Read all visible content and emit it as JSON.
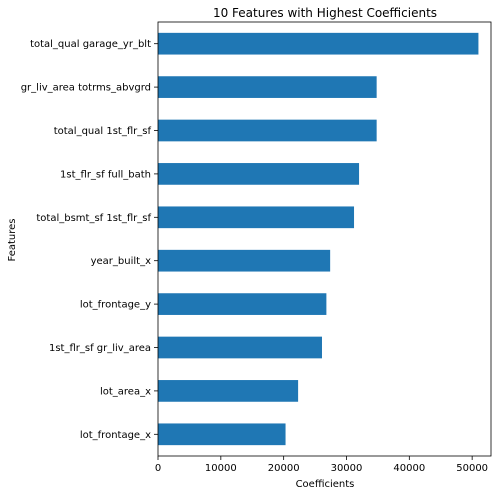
{
  "chart_data": {
    "type": "bar",
    "orientation": "horizontal",
    "title": "10 Features with Highest Coefficients",
    "xlabel": "Coefficients",
    "ylabel": "Features",
    "xlim": [
      0,
      53000
    ],
    "xticks": [
      0,
      10000,
      20000,
      30000,
      40000,
      50000
    ],
    "xtick_labels": [
      "0",
      "10000",
      "20000",
      "30000",
      "40000",
      "50000"
    ],
    "categories": [
      "total_qual garage_yr_blt",
      "gr_liv_area totrms_abvgrd",
      "total_qual 1st_flr_sf",
      "1st_flr_sf full_bath",
      "total_bsmt_sf 1st_flr_sf",
      "year_built_x",
      "lot_frontage_y",
      "1st_flr_sf gr_liv_area",
      "lot_area_x",
      "lot_frontage_x"
    ],
    "values": [
      51000,
      34800,
      34800,
      32000,
      31200,
      27400,
      26800,
      26100,
      22300,
      20300
    ],
    "bar_color": "#1f77b4",
    "grid": false,
    "legend": "none"
  }
}
